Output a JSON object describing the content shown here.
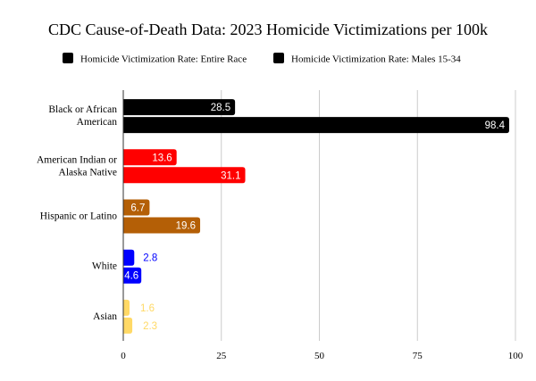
{
  "chart_data": {
    "type": "bar",
    "orientation": "horizontal",
    "title": "CDC Cause-of-Death Data: 2023 Homicide Victimizations per 100k",
    "categories": [
      [
        "Black or African",
        "American"
      ],
      [
        "American Indian or",
        "Alaska Native"
      ],
      [
        "Hispanic or Latino"
      ],
      [
        "White"
      ],
      [
        "Asian"
      ]
    ],
    "category_colors": [
      "#000000",
      "#ff0000",
      "#b45f06",
      "#0000ff",
      "#ffd966"
    ],
    "series": [
      {
        "name": "Homicide Victimization Rate: Entire Race",
        "values": [
          28.5,
          13.6,
          6.7,
          2.8,
          1.6
        ]
      },
      {
        "name": "Homicide Victimization Rate: Males 15-34",
        "values": [
          98.4,
          31.1,
          19.6,
          4.6,
          2.3
        ]
      }
    ],
    "xlim": [
      0,
      100
    ],
    "xticks": [
      0,
      25,
      50,
      75,
      100
    ],
    "grid": true,
    "legend_position": "top"
  }
}
